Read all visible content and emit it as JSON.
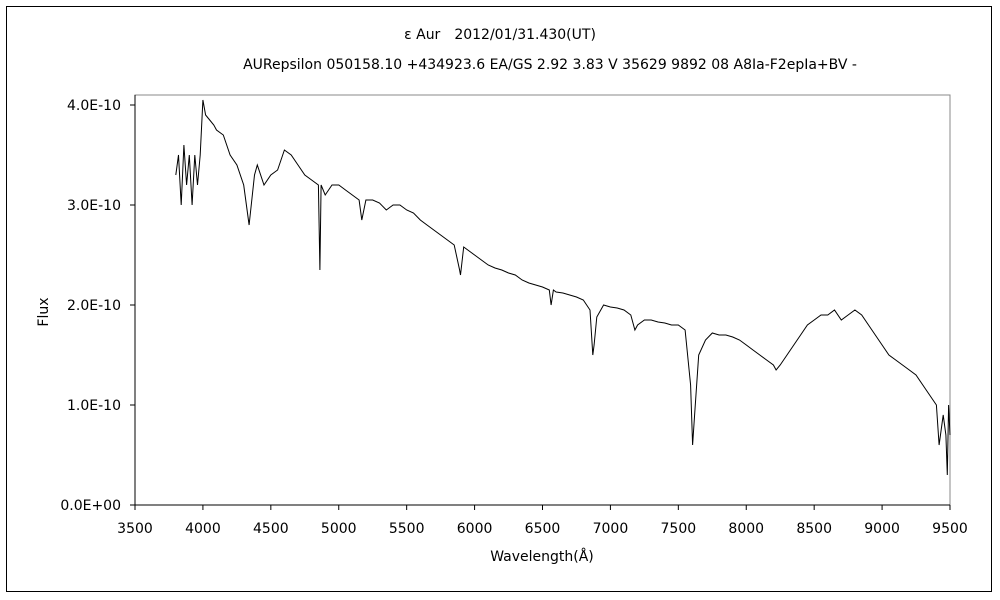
{
  "chart_data": {
    "type": "line",
    "title": "ε Aur　2012/01/31.430(UT)",
    "subtitle": "AURepsilon 050158.10 +434923.6 EA/GS 2.92 3.83 V 35629 9892 08 A8Ia-F2epIa+BV -",
    "xlabel": "Wavelength(Å)",
    "ylabel": "Flux",
    "xlim": [
      3500,
      9500
    ],
    "ylim": [
      0,
      4e-10
    ],
    "xticks": [
      "3500",
      "4000",
      "4500",
      "5000",
      "5500",
      "6000",
      "6500",
      "7000",
      "7500",
      "8000",
      "8500",
      "9000",
      "9500"
    ],
    "yticks": [
      "0.0E+00",
      "1.0E-10",
      "2.0E-10",
      "3.0E-10",
      "4.0E-10"
    ],
    "grid": false,
    "legend": "none",
    "line_color": "#000000",
    "series": [
      {
        "x": [
          3800,
          3820,
          3840,
          3860,
          3880,
          3900,
          3920,
          3940,
          3960,
          3980,
          4000,
          4020,
          4050,
          4080,
          4100,
          4150,
          4200,
          4250,
          4300,
          4340,
          4380,
          4400,
          4450,
          4500,
          4550,
          4600,
          4650,
          4700,
          4750,
          4800,
          4850,
          4861,
          4870,
          4900,
          4950,
          5000,
          5050,
          5100,
          5150,
          5170,
          5200,
          5250,
          5300,
          5350,
          5400,
          5450,
          5500,
          5550,
          5600,
          5650,
          5700,
          5750,
          5800,
          5850,
          5890,
          5896,
          5920,
          5950,
          6000,
          6050,
          6100,
          6150,
          6200,
          6250,
          6300,
          6350,
          6400,
          6450,
          6500,
          6550,
          6563,
          6580,
          6600,
          6650,
          6700,
          6750,
          6800,
          6850,
          6870,
          6880,
          6900,
          6950,
          7000,
          7050,
          7100,
          7150,
          7180,
          7200,
          7250,
          7300,
          7350,
          7400,
          7450,
          7500,
          7550,
          7590,
          7605,
          7620,
          7650,
          7700,
          7750,
          7800,
          7850,
          7900,
          7950,
          8000,
          8050,
          8100,
          8150,
          8200,
          8220,
          8250,
          8300,
          8350,
          8400,
          8450,
          8500,
          8550,
          8600,
          8650,
          8700,
          8750,
          8800,
          8850,
          8900,
          8950,
          9000,
          9050,
          9100,
          9150,
          9200,
          9250,
          9300,
          9350,
          9400,
          9420,
          9450,
          9470,
          9480,
          9490,
          9500
        ],
        "y": [
          3.3e-10,
          3.5e-10,
          3e-10,
          3.6e-10,
          3.2e-10,
          3.5e-10,
          3e-10,
          3.5e-10,
          3.2e-10,
          3.5e-10,
          4.05e-10,
          3.9e-10,
          3.85e-10,
          3.8e-10,
          3.75e-10,
          3.7e-10,
          3.5e-10,
          3.4e-10,
          3.2e-10,
          2.8e-10,
          3.3e-10,
          3.4e-10,
          3.2e-10,
          3.3e-10,
          3.35e-10,
          3.55e-10,
          3.5e-10,
          3.4e-10,
          3.3e-10,
          3.25e-10,
          3.2e-10,
          2.35e-10,
          3.2e-10,
          3.1e-10,
          3.2e-10,
          3.2e-10,
          3.15e-10,
          3.1e-10,
          3.05e-10,
          2.85e-10,
          3.05e-10,
          3.05e-10,
          3.02e-10,
          2.95e-10,
          3e-10,
          3e-10,
          2.95e-10,
          2.92e-10,
          2.85e-10,
          2.8e-10,
          2.75e-10,
          2.7e-10,
          2.65e-10,
          2.6e-10,
          2.35e-10,
          2.3e-10,
          2.58e-10,
          2.55e-10,
          2.5e-10,
          2.45e-10,
          2.4e-10,
          2.37e-10,
          2.35e-10,
          2.32e-10,
          2.3e-10,
          2.25e-10,
          2.22e-10,
          2.2e-10,
          2.18e-10,
          2.15e-10,
          2e-10,
          2.15e-10,
          2.13e-10,
          2.12e-10,
          2.1e-10,
          2.08e-10,
          2.05e-10,
          1.95e-10,
          1.5e-10,
          1.6e-10,
          1.88e-10,
          2e-10,
          1.98e-10,
          1.97e-10,
          1.95e-10,
          1.9e-10,
          1.75e-10,
          1.8e-10,
          1.85e-10,
          1.85e-10,
          1.83e-10,
          1.82e-10,
          1.8e-10,
          1.8e-10,
          1.75e-10,
          1.2e-10,
          6e-11,
          9e-11,
          1.5e-10,
          1.65e-10,
          1.72e-10,
          1.7e-10,
          1.7e-10,
          1.68e-10,
          1.65e-10,
          1.6e-10,
          1.55e-10,
          1.5e-10,
          1.45e-10,
          1.4e-10,
          1.35e-10,
          1.4e-10,
          1.5e-10,
          1.6e-10,
          1.7e-10,
          1.8e-10,
          1.85e-10,
          1.9e-10,
          1.9e-10,
          1.95e-10,
          1.85e-10,
          1.9e-10,
          1.95e-10,
          1.9e-10,
          1.8e-10,
          1.7e-10,
          1.6e-10,
          1.5e-10,
          1.45e-10,
          1.4e-10,
          1.35e-10,
          1.3e-10,
          1.2e-10,
          1.1e-10,
          1e-10,
          6e-11,
          9e-11,
          7e-11,
          3e-11,
          1e-10,
          7e-11
        ]
      }
    ]
  }
}
